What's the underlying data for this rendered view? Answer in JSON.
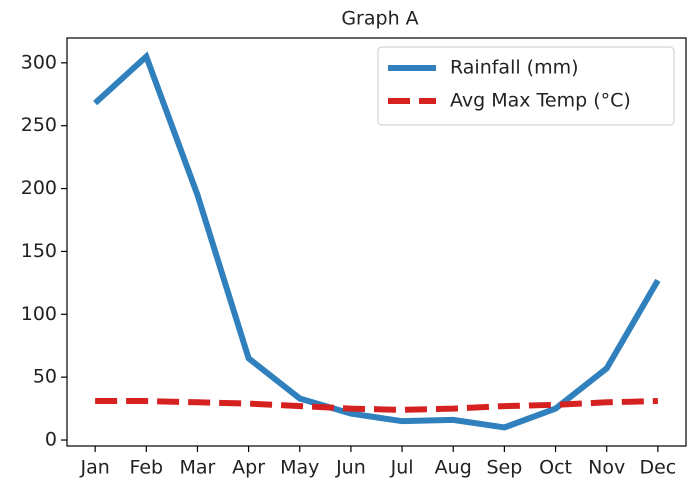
{
  "chart_data": {
    "type": "line",
    "title": "Graph A",
    "categories": [
      "Jan",
      "Feb",
      "Mar",
      "Apr",
      "May",
      "Jun",
      "Jul",
      "Aug",
      "Sep",
      "Oct",
      "Nov",
      "Dec"
    ],
    "series": [
      {
        "name": "Rainfall (mm)",
        "color": "#3080bd",
        "style": "solid",
        "values": [
          268,
          305,
          195,
          65,
          33,
          21,
          15,
          16,
          10,
          25,
          57,
          127
        ]
      },
      {
        "name": "Avg Max Temp (°C)",
        "color": "#d62121",
        "style": "dashed",
        "values": [
          31,
          31,
          30,
          29,
          27,
          25,
          24,
          25,
          27,
          28,
          30,
          31
        ]
      }
    ],
    "ylim": [
      -4.75,
      319.75
    ],
    "yticks": [
      0,
      50,
      100,
      150,
      200,
      250,
      300
    ],
    "grid": false,
    "legend": "upper right"
  }
}
